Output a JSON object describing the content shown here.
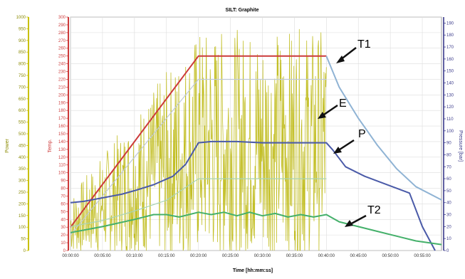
{
  "chart_data": {
    "type": "line",
    "title": "SILT: Graphite",
    "xlabel": "Time [hh:mm:ss]",
    "ylabel_power": "Power",
    "ylabel_temp": "Temp.",
    "ylabel_pressure": "Pressure [bar]",
    "x_ticks": [
      "00:00:00",
      "00:05:00",
      "00:10:00",
      "00:15:00",
      "00:20:00",
      "00:25:00",
      "00:30:00",
      "00:35:00",
      "00:40:00",
      "00:45:00",
      "00:50:00",
      "00:55:00"
    ],
    "xlim": [
      0,
      58
    ],
    "temp_ticks": [
      0,
      10,
      20,
      30,
      40,
      50,
      60,
      70,
      80,
      90,
      100,
      110,
      120,
      130,
      140,
      150,
      160,
      170,
      180,
      190,
      200,
      210,
      220,
      230,
      240,
      250,
      260,
      270,
      280,
      290,
      300
    ],
    "temp_lim": [
      0,
      300
    ],
    "pressure_ticks": [
      0,
      10,
      20,
      30,
      40,
      50,
      60,
      70,
      80,
      90,
      100,
      110,
      120,
      130,
      140,
      150,
      160,
      170,
      180,
      190
    ],
    "pressure_lim": [
      0,
      195
    ],
    "power_ticks": [
      0,
      50,
      100,
      150,
      200,
      250,
      300,
      350,
      400,
      450,
      500,
      550,
      600,
      650,
      700,
      750,
      800,
      850,
      900,
      950,
      1000
    ],
    "power_lim": [
      0,
      1000
    ],
    "grid": true,
    "series": [
      {
        "key": "T1",
        "color": "#cc3a3a",
        "axis": "temp",
        "x": [
          0,
          20,
          40
        ],
        "y": [
          30,
          250,
          250
        ]
      },
      {
        "key": "T1_cool",
        "color": "#8fb3d4",
        "axis": "temp",
        "x": [
          40,
          42,
          45,
          48,
          51,
          54,
          58
        ],
        "y": [
          250,
          210,
          170,
          135,
          105,
          82,
          65
        ]
      },
      {
        "key": "T1_faint",
        "color": "#bfc9d6",
        "axis": "temp",
        "x": [
          0,
          20,
          40
        ],
        "y": [
          20,
          220,
          220
        ]
      },
      {
        "key": "P",
        "color": "#4a5aa8",
        "axis": "pressure",
        "x": [
          0,
          2,
          5,
          8,
          10,
          13,
          16,
          18,
          20,
          22,
          26,
          30,
          36,
          40,
          41,
          43,
          46,
          50,
          53,
          55,
          57
        ],
        "y": [
          40,
          41,
          44,
          47,
          50,
          55,
          62,
          72,
          90,
          91,
          91,
          90,
          90,
          90,
          84,
          70,
          62,
          54,
          48,
          20,
          0
        ]
      },
      {
        "key": "P_faint",
        "color": "#a9d4b4",
        "axis": "pressure",
        "x": [
          0,
          5,
          10,
          15,
          20,
          25,
          30,
          35,
          40
        ],
        "y": [
          20,
          25,
          33,
          42,
          60,
          60,
          60,
          60,
          60
        ]
      },
      {
        "key": "T2",
        "color": "#44b06a",
        "axis": "pressure",
        "x": [
          0,
          5,
          10,
          13,
          15,
          17,
          20,
          22,
          24,
          26,
          28,
          30,
          32,
          34,
          36,
          38,
          40,
          42,
          45,
          48,
          51,
          54,
          58
        ],
        "y": [
          15,
          20,
          26,
          30,
          30,
          28,
          32,
          30,
          32,
          29,
          32,
          29,
          31,
          28,
          30,
          28,
          30,
          24,
          20,
          16,
          12,
          8,
          5
        ]
      }
    ],
    "power_noise": {
      "color": "#b8b400",
      "axis": "power",
      "x_start": 0,
      "x_end": 40,
      "baseline": 450,
      "amplitude": 500
    }
  },
  "annotations": {
    "T1": "T1",
    "E": "E",
    "P": "P",
    "T2": "T2"
  },
  "colors": {
    "power_axis": "#c8c000",
    "temp_axis": "#cc3a3a",
    "pressure_axis": "#3a3a8a",
    "grid": "#dddddd"
  }
}
